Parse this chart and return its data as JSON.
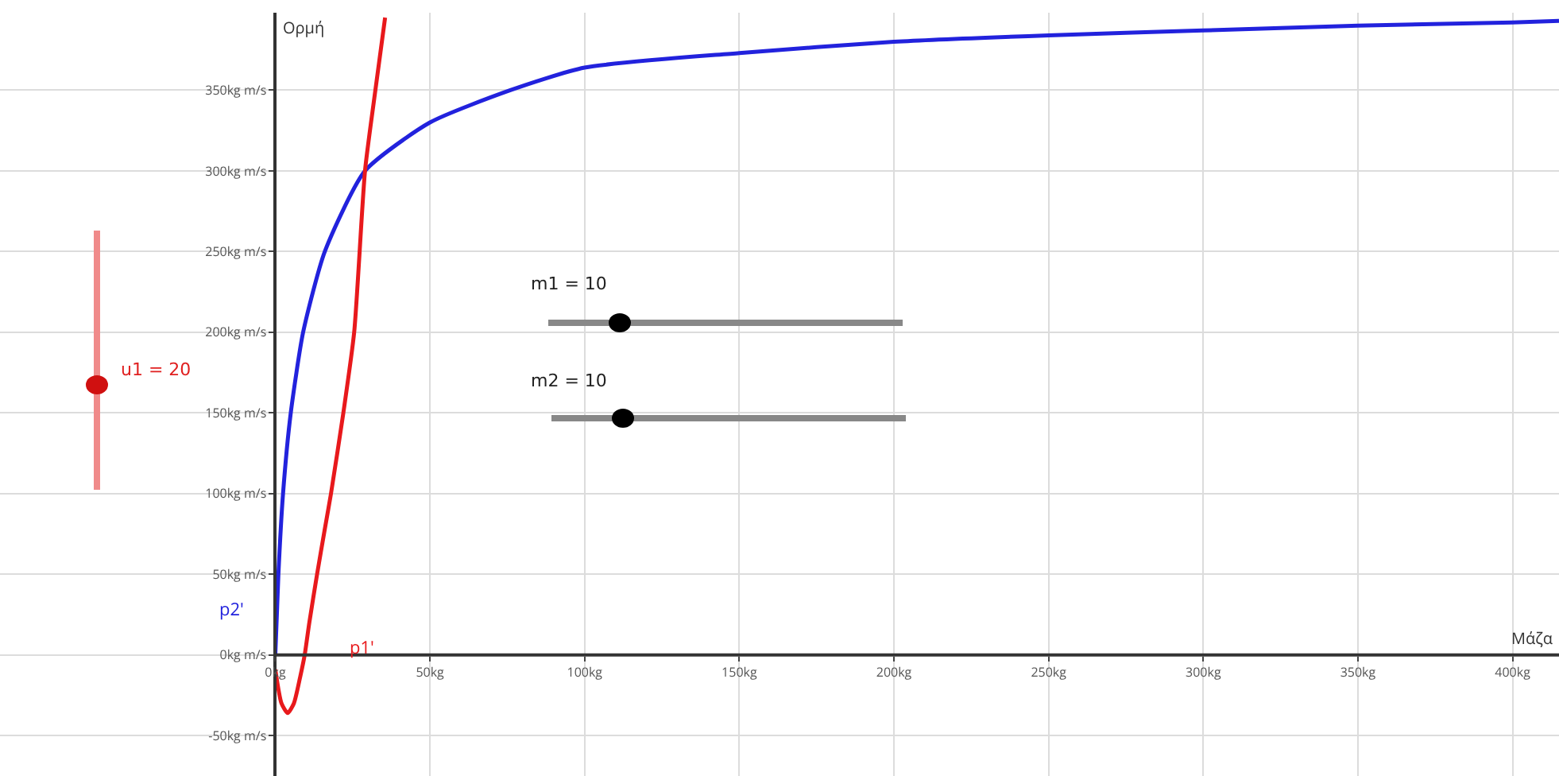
{
  "chart_data": {
    "type": "line",
    "xlabel": "Μάζα",
    "ylabel": "Ορμή",
    "annotations": [
      "u1 = 20",
      "m1 = 10",
      "m2 = 10"
    ],
    "series": [
      {
        "name": "p2'",
        "color": "#2222dd",
        "x": [
          0,
          1,
          2.5,
          5,
          9,
          16,
          29,
          50,
          76,
          100,
          150,
          200,
          250,
          300,
          350,
          400,
          415
        ],
        "values": [
          0,
          50,
          100,
          150,
          200,
          250,
          300,
          330,
          350,
          364,
          373,
          380,
          384,
          387,
          390,
          392,
          393
        ]
      },
      {
        "name": "p1'",
        "color": "#e8191c",
        "x": [
          0,
          2,
          4,
          6,
          8,
          9.5,
          11,
          13.5,
          16,
          18,
          22,
          25.5,
          29,
          32,
          35.5
        ],
        "values": [
          -9,
          -30,
          -36,
          -30,
          -14,
          0,
          20,
          50,
          78,
          100,
          150,
          200,
          300,
          345,
          395
        ]
      }
    ],
    "xlim": [
      -89,
      415
    ],
    "ylim": [
      -75,
      398
    ],
    "xticks": [
      {
        "value": 0,
        "label": "0kg"
      },
      {
        "value": 50,
        "label": "50kg"
      },
      {
        "value": 100,
        "label": "100kg"
      },
      {
        "value": 150,
        "label": "150kg"
      },
      {
        "value": 200,
        "label": "200kg"
      },
      {
        "value": 250,
        "label": "250kg"
      },
      {
        "value": 300,
        "label": "300kg"
      },
      {
        "value": 350,
        "label": "350kg"
      },
      {
        "value": 400,
        "label": "400kg"
      }
    ],
    "yticks": [
      {
        "value": -50,
        "label": "-50kg m/s"
      },
      {
        "value": 0,
        "label": "0kg m/s"
      },
      {
        "value": 50,
        "label": "50kg m/s"
      },
      {
        "value": 100,
        "label": "100kg m/s"
      },
      {
        "value": 150,
        "label": "150kg m/s"
      },
      {
        "value": 200,
        "label": "200kg m/s"
      },
      {
        "value": 250,
        "label": "250kg m/s"
      },
      {
        "value": 300,
        "label": "300kg m/s"
      },
      {
        "value": 350,
        "label": "350kg m/s"
      }
    ],
    "grid": true,
    "legend": false,
    "marker": "none",
    "line_style": "solid"
  }
}
